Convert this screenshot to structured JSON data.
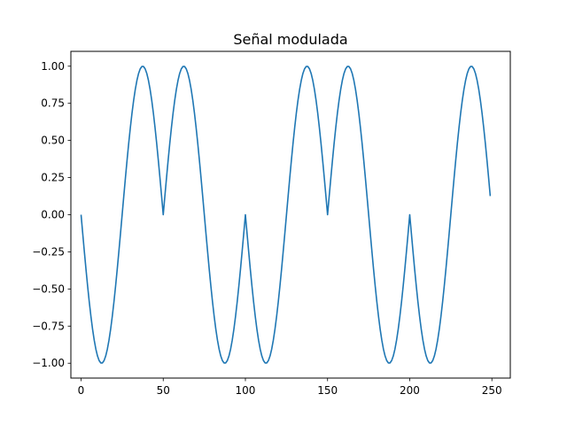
{
  "chart_data": {
    "type": "line",
    "title": "Señal modulada",
    "xlabel": "",
    "ylabel": "",
    "xlim": [
      -6.2,
      261.2
    ],
    "ylim": [
      -1.1,
      1.1
    ],
    "grid": false,
    "legend": "none",
    "xticks": [
      0,
      50,
      100,
      150,
      200,
      250
    ],
    "xtick_labels": [
      "0",
      "50",
      "100",
      "150",
      "200",
      "250"
    ],
    "yticks": [
      -1.0,
      -0.75,
      -0.5,
      -0.25,
      0.0,
      0.25,
      0.5,
      0.75,
      1.0
    ],
    "ytick_labels": [
      "−1.00",
      "−0.75",
      "−0.50",
      "−0.25",
      "0.00",
      "0.25",
      "0.50",
      "0.75",
      "1.00"
    ],
    "line_color": "#1f77b4",
    "series": [
      {
        "x": [
          0,
          1,
          2,
          3,
          4,
          5,
          6,
          7,
          8,
          9,
          10,
          11,
          12,
          13,
          14,
          15,
          16,
          17,
          18,
          19,
          20,
          21,
          22,
          23,
          24,
          25,
          26,
          27,
          28,
          29,
          30,
          31,
          32,
          33,
          34,
          35,
          36,
          37,
          38,
          39,
          40,
          41,
          42,
          43,
          44,
          45,
          46,
          47,
          48,
          49,
          50,
          51,
          52,
          53,
          54,
          55,
          56,
          57,
          58,
          59,
          60,
          61,
          62,
          63,
          64,
          65,
          66,
          67,
          68,
          69,
          70,
          71,
          72,
          73,
          74,
          75,
          76,
          77,
          78,
          79,
          80,
          81,
          82,
          83,
          84,
          85,
          86,
          87,
          88,
          89,
          90,
          91,
          92,
          93,
          94,
          95,
          96,
          97,
          98,
          99,
          100,
          101,
          102,
          103,
          104,
          105,
          106,
          107,
          108,
          109,
          110,
          111,
          112,
          113,
          114,
          115,
          116,
          117,
          118,
          119,
          120,
          121,
          122,
          123,
          124,
          125,
          126,
          127,
          128,
          129,
          130,
          131,
          132,
          133,
          134,
          135,
          136,
          137,
          138,
          139,
          140,
          141,
          142,
          143,
          144,
          145,
          146,
          147,
          148,
          149,
          150,
          151,
          152,
          153,
          154,
          155,
          156,
          157,
          158,
          159,
          160,
          161,
          162,
          163,
          164,
          165,
          166,
          167,
          168,
          169,
          170,
          171,
          172,
          173,
          174,
          175,
          176,
          177,
          178,
          179,
          180,
          181,
          182,
          183,
          184,
          185,
          186,
          187,
          188,
          189,
          190,
          191,
          192,
          193,
          194,
          195,
          196,
          197,
          198,
          199,
          200,
          201,
          202,
          203,
          204,
          205,
          206,
          207,
          208,
          209,
          210,
          211,
          212,
          213,
          214,
          215,
          216,
          217,
          218,
          219,
          220,
          221,
          222,
          223,
          224,
          225,
          226,
          227,
          228,
          229,
          230,
          231,
          232,
          233,
          234,
          235,
          236,
          237,
          238,
          239,
          240,
          241,
          242,
          243,
          244,
          245,
          246,
          247,
          248,
          249
        ],
        "y": [
          0.0,
          -0.1253,
          -0.2487,
          -0.3681,
          -0.4818,
          -0.5878,
          -0.6845,
          -0.7705,
          -0.8443,
          -0.9048,
          -0.9511,
          -0.9823,
          -0.998,
          -0.998,
          -0.9823,
          -0.9511,
          -0.9048,
          -0.8443,
          -0.7705,
          -0.6845,
          -0.5878,
          -0.4818,
          -0.3681,
          -0.2487,
          -0.1253,
          0.0,
          0.1253,
          0.2487,
          0.3681,
          0.4818,
          0.5878,
          0.6845,
          0.7705,
          0.8443,
          0.9048,
          0.9511,
          0.9823,
          0.998,
          0.998,
          0.9823,
          0.9511,
          0.9048,
          0.8443,
          0.7705,
          0.6845,
          0.5878,
          0.4818,
          0.3681,
          0.2487,
          0.1253,
          0.0,
          0.1253,
          0.2487,
          0.3681,
          0.4818,
          0.5878,
          0.6845,
          0.7705,
          0.8443,
          0.9048,
          0.9511,
          0.9823,
          0.998,
          0.998,
          0.9823,
          0.9511,
          0.9048,
          0.8443,
          0.7705,
          0.6845,
          0.5878,
          0.4818,
          0.3681,
          0.2487,
          0.1253,
          0.0,
          -0.1253,
          -0.2487,
          -0.3681,
          -0.4818,
          -0.5878,
          -0.6845,
          -0.7705,
          -0.8443,
          -0.9048,
          -0.9511,
          -0.9823,
          -0.998,
          -0.998,
          -0.9823,
          -0.9511,
          -0.9048,
          -0.8443,
          -0.7705,
          -0.6845,
          -0.5878,
          -0.4818,
          -0.3681,
          -0.2487,
          -0.1253,
          0.0,
          -0.1253,
          -0.2487,
          -0.3681,
          -0.4818,
          -0.5878,
          -0.6845,
          -0.7705,
          -0.8443,
          -0.9048,
          -0.9511,
          -0.9823,
          -0.998,
          -0.998,
          -0.9823,
          -0.9511,
          -0.9048,
          -0.8443,
          -0.7705,
          -0.6845,
          -0.5878,
          -0.4818,
          -0.3681,
          -0.2487,
          -0.1253,
          0.0,
          0.1253,
          0.2487,
          0.3681,
          0.4818,
          0.5878,
          0.6845,
          0.7705,
          0.8443,
          0.9048,
          0.9511,
          0.9823,
          0.998,
          0.998,
          0.9823,
          0.9511,
          0.9048,
          0.8443,
          0.7705,
          0.6845,
          0.5878,
          0.4818,
          0.3681,
          0.2487,
          0.1253,
          0.0,
          0.1253,
          0.2487,
          0.3681,
          0.4818,
          0.5878,
          0.6845,
          0.7705,
          0.8443,
          0.9048,
          0.9511,
          0.9823,
          0.998,
          0.998,
          0.9823,
          0.9511,
          0.9048,
          0.8443,
          0.7705,
          0.6845,
          0.5878,
          0.4818,
          0.3681,
          0.2487,
          0.1253,
          0.0,
          -0.1253,
          -0.2487,
          -0.3681,
          -0.4818,
          -0.5878,
          -0.6845,
          -0.7705,
          -0.8443,
          -0.9048,
          -0.9511,
          -0.9823,
          -0.998,
          -0.998,
          -0.9823,
          -0.9511,
          -0.9048,
          -0.8443,
          -0.7705,
          -0.6845,
          -0.5878,
          -0.4818,
          -0.3681,
          -0.2487,
          -0.1253,
          0.0,
          -0.1253,
          -0.2487,
          -0.3681,
          -0.4818,
          -0.5878,
          -0.6845,
          -0.7705,
          -0.8443,
          -0.9048,
          -0.9511,
          -0.9823,
          -0.998,
          -0.998,
          -0.9823,
          -0.9511,
          -0.9048,
          -0.8443,
          -0.7705,
          -0.6845,
          -0.5878,
          -0.4818,
          -0.3681,
          -0.2487,
          -0.1253,
          0.0,
          0.1253,
          0.2487,
          0.3681,
          0.4818,
          0.5878,
          0.6845,
          0.7705,
          0.8443,
          0.9048,
          0.9511,
          0.9823,
          0.998,
          0.998,
          0.9823,
          0.9511,
          0.9048,
          0.8443,
          0.7705,
          0.6845,
          0.5878,
          0.4818,
          0.3681,
          0.2487,
          0.1253
        ]
      }
    ]
  }
}
